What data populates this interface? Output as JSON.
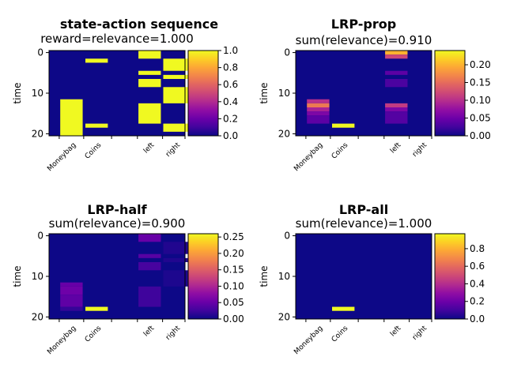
{
  "chart_data": [
    {
      "type": "heatmap",
      "title": "state-action sequence",
      "subtitle": "reward=relevance=1.000",
      "ylabel": "time",
      "xlabel": "",
      "x_ticklabels": [
        "Moneybag",
        "Coins",
        "left",
        "right"
      ],
      "y_ticklabels": [
        "0",
        "10",
        "20"
      ],
      "ylim": [
        0,
        20
      ],
      "colorbar": {
        "colormap": "plasma",
        "min": 0.0,
        "max": 1.0,
        "ticks": [
          "0.0",
          "0.2",
          "0.4",
          "0.6",
          "0.8",
          "1.0"
        ]
      },
      "description_cells": [
        {
          "column": "Moneybag",
          "rows": [
            12,
            20
          ],
          "value": 1.0
        },
        {
          "column": "Coins",
          "rows": [
            2,
            2
          ],
          "value": 1.0
        },
        {
          "column": "Coins",
          "rows": [
            18,
            18
          ],
          "value": 1.0
        },
        {
          "column": "left",
          "rows": [
            0,
            1
          ],
          "value": 1.0
        },
        {
          "column": "left",
          "rows": [
            5,
            5
          ],
          "value": 1.0
        },
        {
          "column": "left",
          "rows": [
            7,
            8
          ],
          "value": 1.0
        },
        {
          "column": "left",
          "rows": [
            13,
            17
          ],
          "value": 1.0
        },
        {
          "column": "right",
          "rows": [
            2,
            4
          ],
          "value": 1.0
        },
        {
          "column": "right",
          "rows": [
            6,
            6
          ],
          "value": 1.0
        },
        {
          "column": "right",
          "rows": [
            9,
            12
          ],
          "value": 1.0
        },
        {
          "column": "right",
          "rows": [
            18,
            19
          ],
          "value": 1.0
        }
      ]
    },
    {
      "type": "heatmap",
      "title": "LRP-prop",
      "subtitle": "sum(relevance)=0.910",
      "ylabel": "time",
      "xlabel": "",
      "x_ticklabels": [
        "Moneybag",
        "Coins",
        "left",
        "right"
      ],
      "y_ticklabels": [
        "0",
        "10",
        "20"
      ],
      "ylim": [
        0,
        20
      ],
      "colorbar": {
        "colormap": "plasma",
        "min": 0.0,
        "max": 0.24,
        "ticks": [
          "0.00",
          "0.05",
          "0.10",
          "0.15",
          "0.20"
        ]
      },
      "description_cells": [
        {
          "column": "Moneybag",
          "rows": [
            12,
            12
          ],
          "value": 0.1
        },
        {
          "column": "Moneybag",
          "rows": [
            13,
            13
          ],
          "value": 0.16
        },
        {
          "column": "Moneybag",
          "rows": [
            14,
            14
          ],
          "value": 0.09
        },
        {
          "column": "Moneybag",
          "rows": [
            15,
            15
          ],
          "value": 0.06
        },
        {
          "column": "Moneybag",
          "rows": [
            16,
            17
          ],
          "value": 0.04
        },
        {
          "column": "Coins",
          "rows": [
            18,
            18
          ],
          "value": 0.24
        },
        {
          "column": "left",
          "rows": [
            0,
            0
          ],
          "value": 0.2
        },
        {
          "column": "left",
          "rows": [
            1,
            1
          ],
          "value": 0.12
        },
        {
          "column": "left",
          "rows": [
            5,
            5
          ],
          "value": 0.04
        },
        {
          "column": "left",
          "rows": [
            7,
            8
          ],
          "value": 0.03
        },
        {
          "column": "left",
          "rows": [
            13,
            13
          ],
          "value": 0.11
        },
        {
          "column": "left",
          "rows": [
            14,
            14
          ],
          "value": 0.06
        },
        {
          "column": "left",
          "rows": [
            15,
            17
          ],
          "value": 0.035
        }
      ]
    },
    {
      "type": "heatmap",
      "title": "LRP-half",
      "subtitle": "sum(relevance)=0.900",
      "ylabel": "time",
      "xlabel": "",
      "x_ticklabels": [
        "Moneybag",
        "Coins",
        "left",
        "right"
      ],
      "y_ticklabels": [
        "0",
        "10",
        "20"
      ],
      "ylim": [
        0,
        20
      ],
      "colorbar": {
        "colormap": "plasma",
        "min": 0.0,
        "max": 0.26,
        "ticks": [
          "0.00",
          "0.05",
          "0.10",
          "0.15",
          "0.20",
          "0.25"
        ]
      },
      "description_cells": [
        {
          "column": "Moneybag",
          "rows": [
            12,
            12
          ],
          "value": 0.05
        },
        {
          "column": "Moneybag",
          "rows": [
            13,
            14
          ],
          "value": 0.055
        },
        {
          "column": "Moneybag",
          "rows": [
            15,
            17
          ],
          "value": 0.045
        },
        {
          "column": "Moneybag",
          "rows": [
            18,
            18
          ],
          "value": 0.02
        },
        {
          "column": "Coins",
          "rows": [
            18,
            18
          ],
          "value": 0.26
        },
        {
          "column": "left",
          "rows": [
            0,
            1
          ],
          "value": 0.05
        },
        {
          "column": "left",
          "rows": [
            5,
            5
          ],
          "value": 0.04
        },
        {
          "column": "left",
          "rows": [
            7,
            8
          ],
          "value": 0.03
        },
        {
          "column": "left",
          "rows": [
            13,
            17
          ],
          "value": 0.025
        },
        {
          "column": "right",
          "rows": [
            2,
            4
          ],
          "value": 0.01
        },
        {
          "column": "right",
          "rows": [
            6,
            6
          ],
          "value": 0.01
        },
        {
          "column": "right",
          "rows": [
            9,
            12
          ],
          "value": 0.008
        }
      ]
    },
    {
      "type": "heatmap",
      "title": "LRP-all",
      "subtitle": "sum(relevance)=1.000",
      "ylabel": "time",
      "xlabel": "",
      "x_ticklabels": [
        "Moneybag",
        "Coins",
        "left",
        "right"
      ],
      "y_ticklabels": [
        "0",
        "10",
        "20"
      ],
      "ylim": [
        0,
        20
      ],
      "colorbar": {
        "colormap": "plasma",
        "min": 0.0,
        "max": 0.97,
        "ticks": [
          "0.0",
          "0.2",
          "0.4",
          "0.6",
          "0.8"
        ],
        "tick_labels_visible": [
          "0.0",
          "0.2",
          "0.4",
          "0.6",
          "0.8"
        ]
      },
      "description_cells": [
        {
          "column": "Coins",
          "rows": [
            18,
            18
          ],
          "value": 0.97
        }
      ]
    }
  ]
}
